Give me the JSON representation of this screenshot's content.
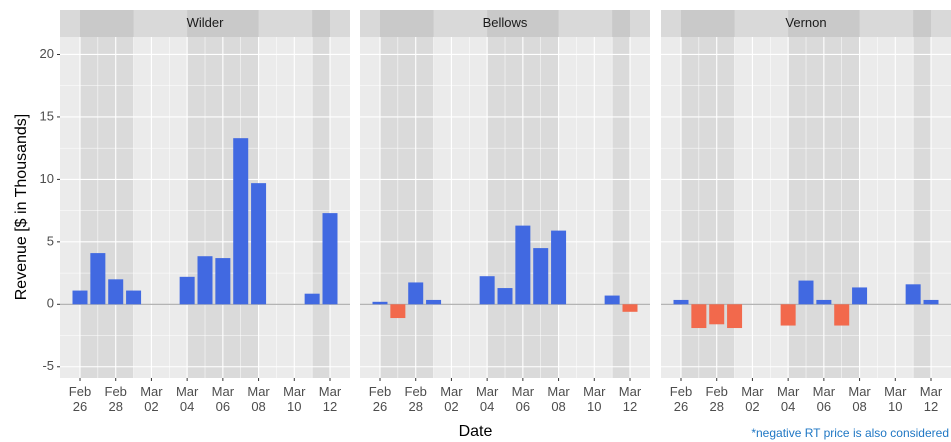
{
  "chart_data": {
    "type": "bar",
    "xlabel": "Date",
    "ylabel": "Revenue [$ in Thousands]",
    "note": "*negative RT price is also considered",
    "categories": [
      "Feb 26",
      null,
      "Feb 28",
      null,
      "Mar 02",
      null,
      "Mar 04",
      null,
      "Mar 06",
      null,
      "Mar 08",
      null,
      "Mar 10",
      null,
      "Mar 12"
    ],
    "ylim": [
      -5.9,
      21.4
    ],
    "yticks": [
      -5,
      0,
      5,
      10,
      15,
      20
    ],
    "grid": true,
    "positive_color": "#4169e1",
    "negative_color": "#f2694c",
    "shaded": [
      [
        0,
        3
      ],
      [
        6,
        10
      ],
      [
        13,
        14
      ]
    ],
    "facets": [
      {
        "name": "Wilder",
        "values": [
          1.1,
          4.1,
          2.0,
          1.1,
          null,
          null,
          2.2,
          3.85,
          3.7,
          13.3,
          9.7,
          null,
          null,
          0.85,
          7.3
        ]
      },
      {
        "name": "Bellows",
        "values": [
          0.2,
          -1.1,
          1.75,
          0.35,
          null,
          null,
          2.25,
          1.3,
          6.3,
          4.5,
          5.9,
          null,
          null,
          0.7,
          -0.6
        ]
      },
      {
        "name": "Vernon",
        "values": [
          0.35,
          -1.9,
          -1.6,
          -1.9,
          null,
          null,
          -1.7,
          1.9,
          0.35,
          -1.7,
          1.35,
          null,
          null,
          1.6,
          0.35
        ]
      }
    ]
  }
}
